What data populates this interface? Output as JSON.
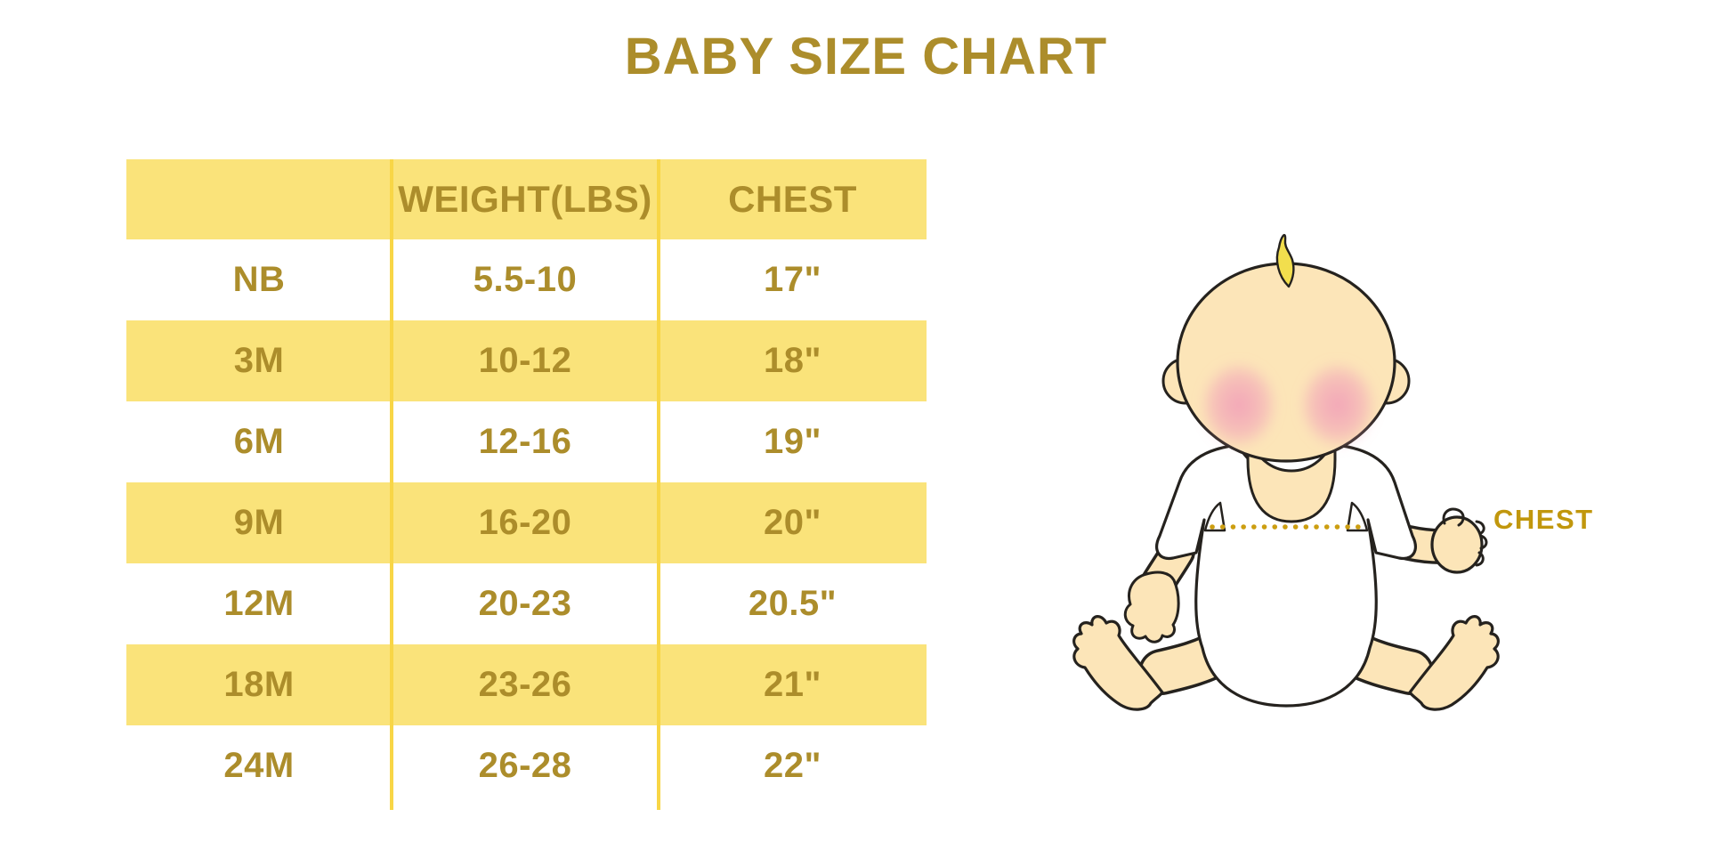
{
  "page": {
    "title": "BABY SIZE CHART"
  },
  "chart_data": {
    "type": "table",
    "title": "BABY SIZE CHART",
    "columns": [
      "",
      "WEIGHT(LBS)",
      "CHEST"
    ],
    "rows": [
      [
        "NB",
        "5.5-10",
        "17\""
      ],
      [
        "3M",
        "10-12",
        "18\""
      ],
      [
        "6M",
        "12-16",
        "19\""
      ],
      [
        "9M",
        "16-20",
        "20\""
      ],
      [
        "12M",
        "20-23",
        "20.5\""
      ],
      [
        "18M",
        "23-26",
        "21\""
      ],
      [
        "24M",
        "26-28",
        "22\""
      ]
    ],
    "row_band_pattern": "header yellow, then alternating white/yellow",
    "legend_position": "none",
    "grid": "vertical yellow dividers between columns"
  },
  "diagram": {
    "label": "CHEST",
    "illustration": "sitting baby in white onesie with dotted chest measurement line"
  },
  "colors": {
    "row_yellow": "#FAE37A",
    "line_yellow": "#F8D646",
    "gold": "#AC8D2B",
    "chest_gold": "#C1970D",
    "dot_gold": "#CC9E11",
    "skin": "#FCE5B8",
    "hair": "#F2DE4D",
    "outline": "#25221E",
    "blush": "#F2A3B8",
    "bg": "#FFFFFF"
  }
}
